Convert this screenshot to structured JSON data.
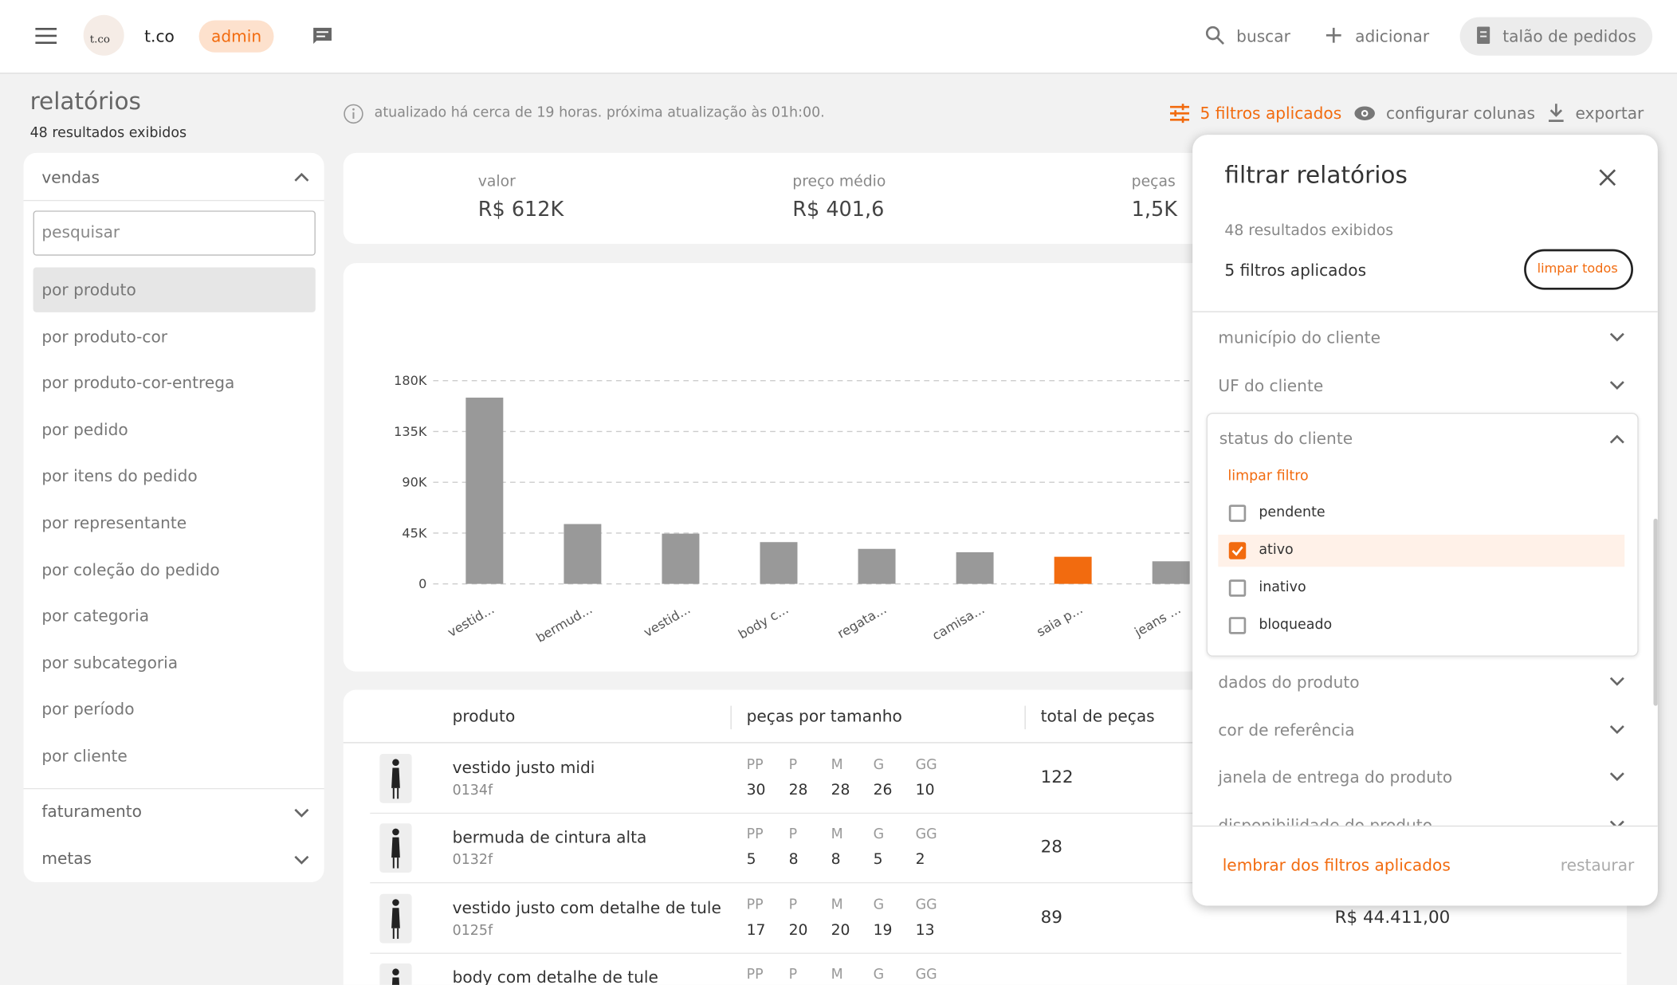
{
  "header": {
    "logo": "t.co",
    "brand": "t.co",
    "role": "admin",
    "search": "buscar",
    "add": "adicionar",
    "orders": "talão de pedidos"
  },
  "page": {
    "title": "relatórios",
    "results": "48 resultados exibidos",
    "update_note": "atualizado há cerca de 19 horas. próxima atualização às 01h:00.",
    "filters_applied": "5 filtros aplicados",
    "configure_columns": "configurar colunas",
    "export": "exportar"
  },
  "sidebar": {
    "section": "vendas",
    "search_placeholder": "pesquisar",
    "selected_index": 0,
    "items": [
      "por produto",
      "por produto-cor",
      "por produto-cor-entrega",
      "por pedido",
      "por itens do pedido",
      "por representante",
      "por coleção do pedido",
      "por categoria",
      "por subcategoria",
      "por período",
      "por cliente"
    ],
    "other_sections": [
      "faturamento",
      "metas"
    ]
  },
  "summary": [
    {
      "label": "valor",
      "value": "R$ 612K"
    },
    {
      "label": "preço médio",
      "value": "R$ 401,6"
    },
    {
      "label": "peças",
      "value": "1,5K"
    }
  ],
  "chart_data": {
    "type": "bar",
    "categories": [
      "vestid...",
      "bermud...",
      "vestid...",
      "body c...",
      "regata...",
      "camisa...",
      "saia p...",
      "jeans ..."
    ],
    "values": [
      165000,
      53000,
      44500,
      37000,
      31000,
      28000,
      24000,
      20000
    ],
    "colors": [
      "#999999",
      "#999999",
      "#999999",
      "#999999",
      "#999999",
      "#999999",
      "#f26b0f",
      "#999999"
    ],
    "ylim": [
      0,
      180000
    ],
    "yticks": [
      0,
      {
        "value": 45000,
        "label": "45K"
      },
      {
        "value": 90000,
        "label": "90K"
      },
      {
        "value": 135000,
        "label": "135K"
      },
      {
        "value": 180000,
        "label": "180K"
      }
    ],
    "grid": true
  },
  "table": {
    "columns": [
      "produto",
      "peças por tamanho",
      "total de peças"
    ],
    "size_labels": [
      "PP",
      "P",
      "M",
      "G",
      "GG"
    ],
    "rows": [
      {
        "name": "vestido justo midi",
        "code": "0134f",
        "sizes": [
          30,
          28,
          28,
          26,
          10
        ],
        "total": 122
      },
      {
        "name": "bermuda de cintura alta",
        "code": "0132f",
        "sizes": [
          5,
          8,
          8,
          5,
          2
        ],
        "total": 28
      },
      {
        "name": "vestido justo com detalhe de tule",
        "code": "0125f",
        "sizes": [
          17,
          20,
          20,
          19,
          13
        ],
        "total": 89,
        "value": "R$ 44.411,00"
      },
      {
        "name": "body com detalhe de tule"
      }
    ]
  },
  "filter_panel": {
    "title": "filtrar relatórios",
    "results": "48 resultados exibidos",
    "applied": "5 filtros aplicados",
    "clear_all": "limpar todos",
    "sections_before": [
      "município do cliente",
      "UF do cliente"
    ],
    "open_section": {
      "title": "status do cliente",
      "clear": "limpar filtro",
      "options": [
        {
          "label": "pendente",
          "checked": false
        },
        {
          "label": "ativo",
          "checked": true
        },
        {
          "label": "inativo",
          "checked": false
        },
        {
          "label": "bloqueado",
          "checked": false
        }
      ]
    },
    "sections_after": [
      "dados do produto",
      "cor de referência",
      "janela de entrega do produto",
      "disponibilidade do produto"
    ],
    "remember": "lembrar dos filtros aplicados",
    "restore": "restaurar"
  }
}
